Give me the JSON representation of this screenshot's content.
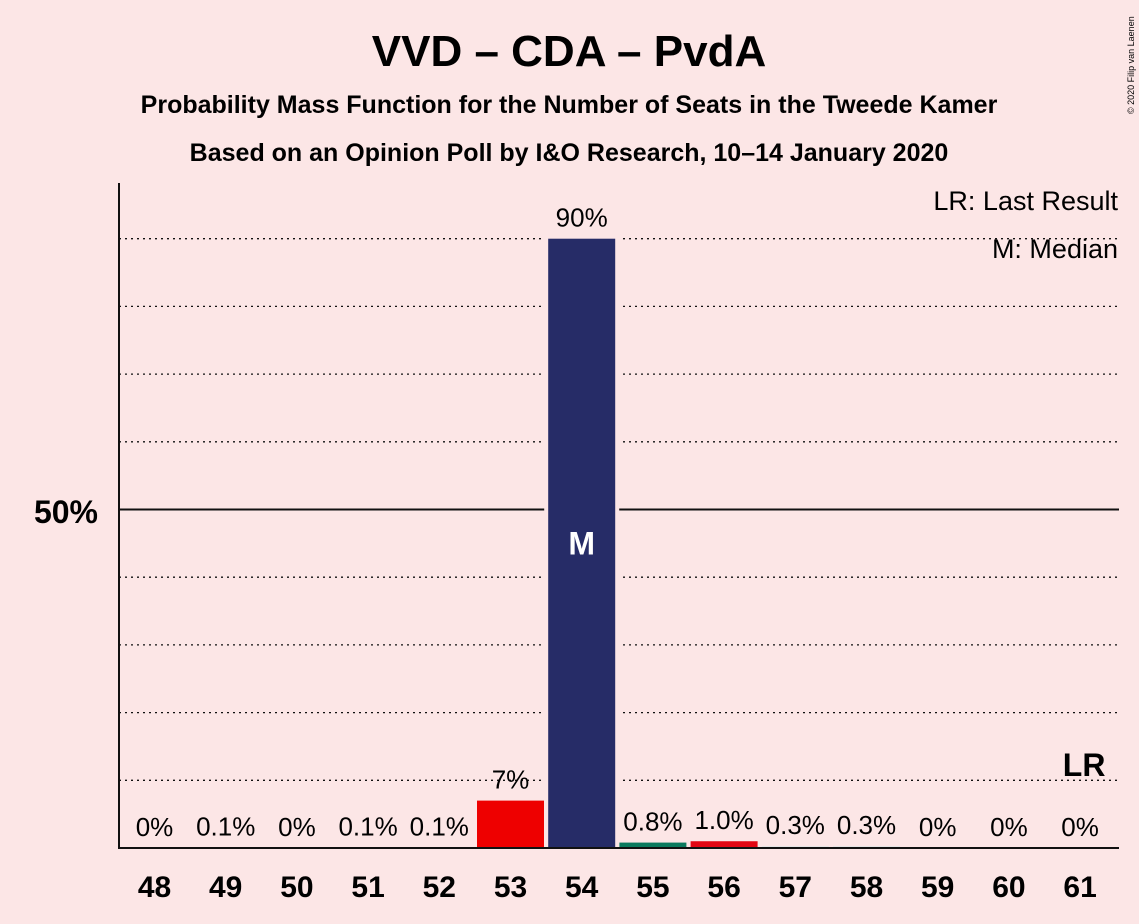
{
  "chart_data": {
    "type": "bar",
    "title": "VVD – CDA – PvdA",
    "subtitle": "Probability Mass Function for the Number of Seats in the Tweede Kamer",
    "subtitle2": "Based on an Opinion Poll by I&O Research, 10–14 January 2020",
    "copyright": "© 2020 Filip van Laenen",
    "categories": [
      "48",
      "49",
      "50",
      "51",
      "52",
      "53",
      "54",
      "55",
      "56",
      "57",
      "58",
      "59",
      "60",
      "61"
    ],
    "values": [
      0,
      0.1,
      0,
      0.1,
      0.1,
      7,
      90,
      0.8,
      1.0,
      0.3,
      0.3,
      0,
      0,
      0
    ],
    "data_labels": [
      "0%",
      "0.1%",
      "0%",
      "0.1%",
      "0.1%",
      "7%",
      "90%",
      "0.8%",
      "1.0%",
      "0.3%",
      "0.3%",
      "0%",
      "0%",
      "0%"
    ],
    "bar_colors": [
      "#e6e6e6",
      "#e6e6e6",
      "#e6e6e6",
      "#e6e6e6",
      "#e6e6e6",
      "#ee0000",
      "#262c67",
      "#0a7a5e",
      "#e30613",
      "#e6e6e6",
      "#e6e6e6",
      "#e6e6e6",
      "#e6e6e6",
      "#e6e6e6"
    ],
    "ylim": [
      0,
      100
    ],
    "y_tick_label": "50%",
    "y_tick_value": 50,
    "grid_values": [
      10,
      20,
      30,
      40,
      60,
      70,
      80,
      90
    ],
    "median_index": 6,
    "median_marker": "M",
    "last_result_index": 13,
    "last_result_marker": "LR",
    "legend": [
      "LR: Last Result",
      "M: Median"
    ],
    "legend_position": "top-right",
    "colors": {
      "background": "#fce6e6",
      "text": "#111111"
    }
  }
}
